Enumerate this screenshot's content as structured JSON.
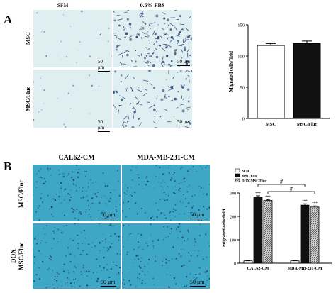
{
  "panels": {
    "a": {
      "letter": "A",
      "col_labels": [
        "SFM",
        "0.5% FBS"
      ],
      "row_labels": [
        "MSC",
        "MSC/Fluc"
      ],
      "scale_bar": "50 μm"
    },
    "b": {
      "letter": "B",
      "col_labels": [
        "CAL62-CM",
        "MDA-MB-231-CM"
      ],
      "row_labels": [
        "MSC/Fluc",
        "DOX\nMSC/Fluc"
      ],
      "scale_bar": "50 μm"
    }
  },
  "colors": {
    "micro_a_bg": "#dfeff1",
    "micro_b_bg": "#3fa7c6",
    "bar_black": "#111111",
    "bar_white": "#ffffff",
    "bar_hatch": "#8a8a8a"
  },
  "chart_data": [
    {
      "type": "bar",
      "categories": [
        "MSC",
        "MSC/Fluc"
      ],
      "values": [
        117,
        120
      ],
      "errors": [
        3,
        4
      ],
      "fills": [
        "white",
        "black"
      ],
      "title": "",
      "xlabel": "",
      "ylabel": "Migrated cells/field",
      "ylim": [
        0,
        150
      ],
      "yticks": [
        0,
        50,
        100,
        150
      ],
      "grid": false
    },
    {
      "type": "bar",
      "categories": [
        "CAL62-CM",
        "MDA-MB-231-CM"
      ],
      "series": [
        {
          "name": "SFM",
          "values": [
            10,
            10
          ],
          "errors": [
            1,
            1
          ],
          "fill": "white"
        },
        {
          "name": "MSC/Fluc",
          "values": [
            283,
            248
          ],
          "errors": [
            5,
            6
          ],
          "fill": "black"
        },
        {
          "name": "DOX-MSC/Fluc",
          "values": [
            268,
            240
          ],
          "errors": [
            4,
            5
          ],
          "fill": "hatch"
        }
      ],
      "significance": [
        "***",
        "***",
        "***",
        "***"
      ],
      "comparisons": [
        "#",
        "#"
      ],
      "title": "",
      "xlabel": "",
      "ylabel": "Migrated cells/field",
      "ylim": [
        0,
        300
      ],
      "yticks": [
        0,
        100,
        200,
        300
      ],
      "legend": "top-left",
      "grid": false
    }
  ]
}
